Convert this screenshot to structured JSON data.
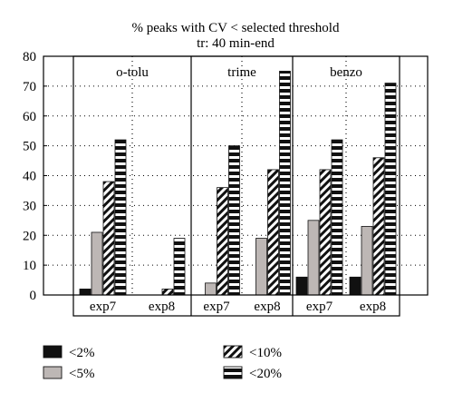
{
  "chart_data": {
    "type": "bar",
    "title": "% peaks with CV < selected threshold",
    "subtitle": "tr: 40 min-end",
    "ylim": [
      0,
      80
    ],
    "yticks": [
      0,
      10,
      20,
      30,
      40,
      50,
      60,
      70,
      80
    ],
    "grid": true,
    "panels": [
      "o-tolu",
      "trime",
      "benzo"
    ],
    "categories": [
      "exp7",
      "exp8"
    ],
    "series": [
      {
        "name": "<2%",
        "pattern": "solid-black",
        "values": [
          [
            2,
            0
          ],
          [
            0,
            0
          ],
          [
            6,
            6
          ]
        ]
      },
      {
        "name": "<5%",
        "pattern": "solid-gray",
        "values": [
          [
            21,
            0
          ],
          [
            4,
            19
          ],
          [
            25,
            23
          ]
        ]
      },
      {
        "name": "<10%",
        "pattern": "diagonal-stripes",
        "values": [
          [
            38,
            2
          ],
          [
            36,
            42
          ],
          [
            42,
            46
          ]
        ]
      },
      {
        "name": "<20%",
        "pattern": "horizontal-stripes",
        "values": [
          [
            52,
            19
          ],
          [
            50,
            75
          ],
          [
            52,
            71
          ]
        ]
      }
    ],
    "legend": "bottom"
  }
}
